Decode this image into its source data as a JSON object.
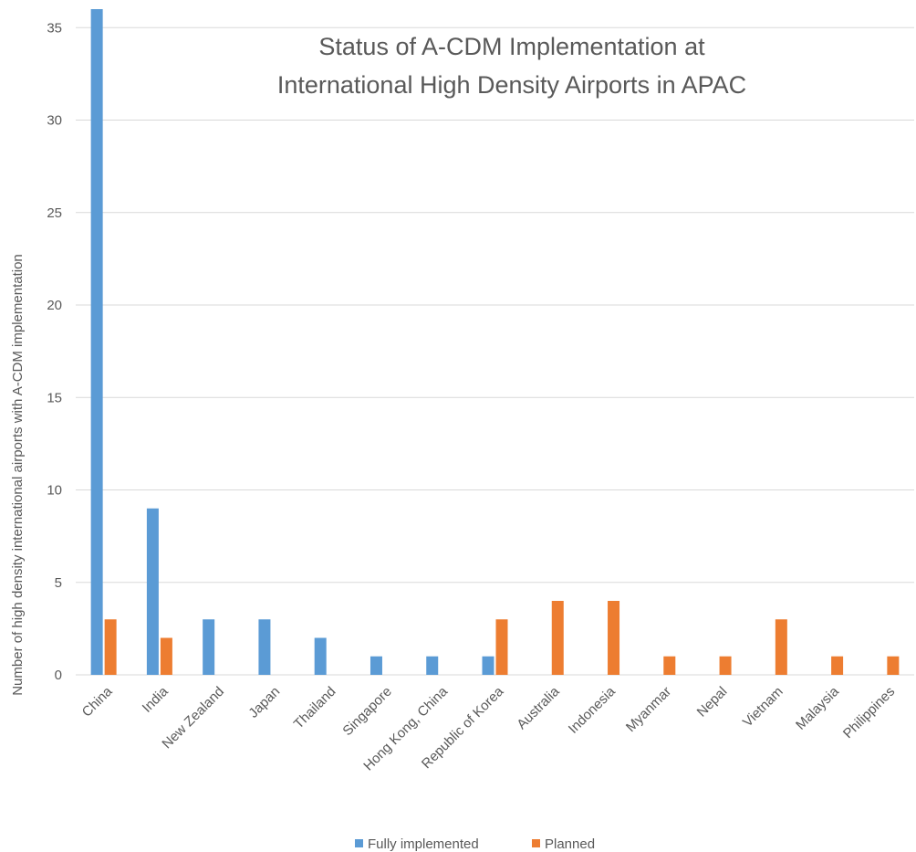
{
  "chart_data": {
    "type": "bar",
    "title_lines": [
      "Status of A-CDM Implementation at",
      "International High Density Airports in APAC"
    ],
    "xlabel": "",
    "ylabel": "Number of high density international airports with A-CDM implementation",
    "ylim": [
      0,
      36
    ],
    "yticks": [
      0,
      5,
      10,
      15,
      20,
      25,
      30,
      35
    ],
    "grid": true,
    "legend_position": "bottom",
    "categories": [
      "China",
      "India",
      "New Zealand",
      "Japan",
      "Thailand",
      "Singapore",
      "Hong Kong, China",
      "Republic of Korea",
      "Australia",
      "Indonesia",
      "Myanmar",
      "Nepal",
      "Vietnam",
      "Malaysia",
      "Philippines"
    ],
    "series": [
      {
        "name": "Fully implemented",
        "color": "#5b9bd5",
        "values": [
          36,
          9,
          3,
          3,
          2,
          1,
          1,
          1,
          0,
          0,
          0,
          0,
          0,
          0,
          0
        ]
      },
      {
        "name": "Planned",
        "color": "#ed7d31",
        "values": [
          3,
          2,
          0,
          0,
          0,
          0,
          0,
          3,
          4,
          4,
          1,
          1,
          3,
          1,
          1
        ]
      }
    ]
  }
}
